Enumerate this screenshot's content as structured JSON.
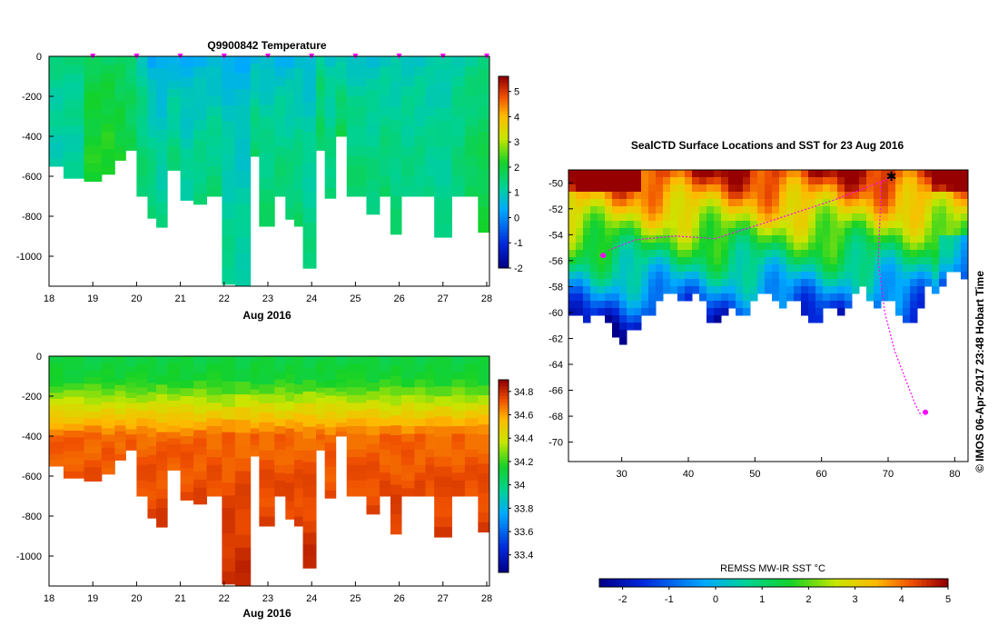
{
  "chart_data": [
    {
      "type": "heatmap",
      "title": "Q9900842  Temperature",
      "xlabel": "Aug 2016",
      "x_ticks": [
        "18",
        "19",
        "20",
        "21",
        "22",
        "23",
        "24",
        "25",
        "26",
        "27",
        "28"
      ],
      "y_ticks": [
        "0",
        "-200",
        "-400",
        "-600",
        "-800",
        "-1000"
      ],
      "xlim": [
        18,
        28
      ],
      "ylim": [
        -1150,
        0
      ],
      "colorbar_ticks": [
        "5",
        "4",
        "3",
        "2",
        "1",
        "0",
        "-1",
        "-2"
      ],
      "colorbar_range": [
        -2,
        5.6
      ],
      "profile_markers_x": [
        19,
        20,
        21,
        22,
        23,
        24,
        25,
        26,
        27,
        28
      ],
      "profiles": [
        {
          "x": 18.0,
          "depth": 550,
          "surface": 1.4,
          "deep": 1.0
        },
        {
          "x": 18.33,
          "depth": 610,
          "surface": 1.4,
          "deep": 1.1
        },
        {
          "x": 18.8,
          "depth": 625,
          "surface": 1.8,
          "deep": 2.2
        },
        {
          "x": 19.2,
          "depth": 590,
          "surface": 1.7,
          "deep": 2.3
        },
        {
          "x": 19.5,
          "depth": 520,
          "surface": 1.6,
          "deep": 2.1
        },
        {
          "x": 19.75,
          "depth": 470,
          "surface": 1.5,
          "deep": 1.8
        },
        {
          "x": 20.0,
          "depth": 700,
          "surface": 1.0,
          "deep": 1.6
        },
        {
          "x": 20.25,
          "depth": 810,
          "surface": 0.3,
          "deep": 1.6
        },
        {
          "x": 20.45,
          "depth": 855,
          "surface": 0.3,
          "deep": 1.3
        },
        {
          "x": 20.7,
          "depth": 570,
          "surface": 0.4,
          "deep": 1.5
        },
        {
          "x": 21.0,
          "depth": 720,
          "surface": 0.4,
          "deep": 1.2
        },
        {
          "x": 21.3,
          "depth": 740,
          "surface": 0.4,
          "deep": 1.5
        },
        {
          "x": 21.6,
          "depth": 700,
          "surface": 0.5,
          "deep": 1.5
        },
        {
          "x": 21.95,
          "depth": 1140,
          "surface": 0.5,
          "deep": 1.3
        },
        {
          "x": 22.25,
          "depth": 1150,
          "surface": 0.4,
          "deep": 1.2
        },
        {
          "x": 22.6,
          "depth": 500,
          "surface": 0.5,
          "deep": 1.6
        },
        {
          "x": 22.8,
          "depth": 850,
          "surface": 0.6,
          "deep": 1.6
        },
        {
          "x": 23.15,
          "depth": 700,
          "surface": 0.5,
          "deep": 1.6
        },
        {
          "x": 23.4,
          "depth": 815,
          "surface": 0.5,
          "deep": 1.6
        },
        {
          "x": 23.6,
          "depth": 850,
          "surface": 0.6,
          "deep": 1.6
        },
        {
          "x": 23.8,
          "depth": 1060,
          "surface": 0.6,
          "deep": 1.4
        },
        {
          "x": 24.1,
          "depth": 470,
          "surface": 1.3,
          "deep": 1.7
        },
        {
          "x": 24.3,
          "depth": 710,
          "surface": 0.8,
          "deep": 1.5
        },
        {
          "x": 24.55,
          "depth": 400,
          "surface": 0.8,
          "deep": 1.8
        },
        {
          "x": 24.8,
          "depth": 700,
          "surface": 0.8,
          "deep": 1.6
        },
        {
          "x": 25.25,
          "depth": 790,
          "surface": 0.8,
          "deep": 1.5
        },
        {
          "x": 25.55,
          "depth": 700,
          "surface": 0.8,
          "deep": 1.6
        },
        {
          "x": 25.8,
          "depth": 890,
          "surface": 0.9,
          "deep": 1.5
        },
        {
          "x": 26.05,
          "depth": 700,
          "surface": 0.9,
          "deep": 1.4
        },
        {
          "x": 26.35,
          "depth": 700,
          "surface": 0.9,
          "deep": 1.4
        },
        {
          "x": 26.6,
          "depth": 700,
          "surface": 0.9,
          "deep": 1.3
        },
        {
          "x": 26.8,
          "depth": 905,
          "surface": 1.0,
          "deep": 1.3
        },
        {
          "x": 27.2,
          "depth": 700,
          "surface": 1.1,
          "deep": 1.5
        },
        {
          "x": 27.5,
          "depth": 700,
          "surface": 1.2,
          "deep": 1.8
        },
        {
          "x": 27.8,
          "depth": 880,
          "surface": 1.3,
          "deep": 2.0
        }
      ]
    },
    {
      "type": "heatmap",
      "title": "",
      "xlabel": "Aug 2016",
      "x_ticks": [
        "18",
        "19",
        "20",
        "21",
        "22",
        "23",
        "24",
        "25",
        "26",
        "27",
        "28"
      ],
      "y_ticks": [
        "0",
        "-200",
        "-400",
        "-600",
        "-800",
        "-1000"
      ],
      "xlim": [
        18,
        28
      ],
      "ylim": [
        -1150,
        0
      ],
      "colorbar_ticks": [
        "34.8",
        "34.6",
        "34.4",
        "34.2",
        "34",
        "33.8",
        "33.6",
        "33.4"
      ],
      "colorbar_range": [
        33.25,
        34.9
      ]
    },
    {
      "type": "heatmap",
      "title": "SealCTD Surface Locations and SST for 23 Aug 2016",
      "x_ticks": [
        "30",
        "40",
        "50",
        "60",
        "70",
        "80"
      ],
      "y_ticks": [
        "-50",
        "-52",
        "-54",
        "-56",
        "-58",
        "-60",
        "-62",
        "-64",
        "-66",
        "-68",
        "-70"
      ],
      "xlim": [
        22,
        82
      ],
      "ylim": [
        -71.5,
        -49
      ],
      "colorbar_label": "REMSS MW-IR SST °C",
      "colorbar_ticks": [
        "-2",
        "-1",
        "0",
        "1",
        "2",
        "3",
        "4",
        "5"
      ],
      "colorbar_range": [
        -2.5,
        5
      ]
    }
  ],
  "credit": "© IMOS 06-Apr-2017 23:48 Hobart Time"
}
